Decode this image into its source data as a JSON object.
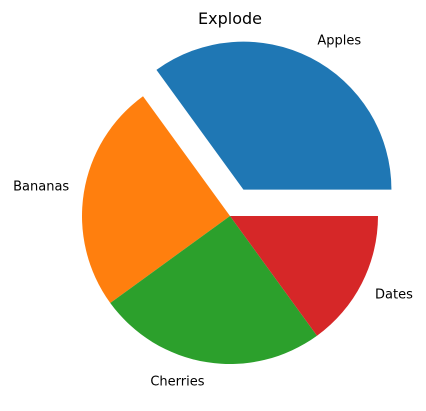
{
  "chart_data": {
    "type": "pie",
    "title": "Explode",
    "labels": [
      "Apples",
      "Bananas",
      "Cherries",
      "Dates"
    ],
    "values": [
      35,
      25,
      25,
      15
    ],
    "explode": [
      0.2,
      0,
      0,
      0
    ],
    "colors": [
      "#1f77b4",
      "#ff7f0e",
      "#2ca02c",
      "#d62728"
    ],
    "start_angle": 0,
    "direction": "counterclockwise",
    "legend": "none"
  }
}
